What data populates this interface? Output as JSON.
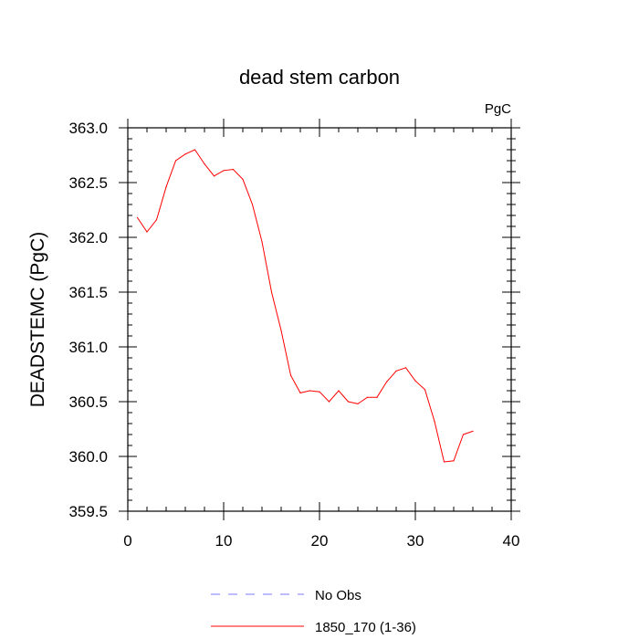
{
  "chart_data": {
    "type": "line",
    "title": "dead stem carbon",
    "units_label": "PgC",
    "xlabel": "",
    "ylabel": "DEADSTEMC  (PgC)",
    "xlim": [
      0,
      40
    ],
    "ylim": [
      359.5,
      363.0
    ],
    "x_ticks": [
      0,
      10,
      20,
      30,
      40
    ],
    "x_tick_labels": [
      "0",
      "10",
      "20",
      "30",
      "40"
    ],
    "y_ticks": [
      359.5,
      360.0,
      360.5,
      361.0,
      361.5,
      362.0,
      362.5,
      363.0
    ],
    "y_tick_labels": [
      "359.5",
      "360.0",
      "360.5",
      "361.0",
      "361.5",
      "362.0",
      "362.5",
      "363.0"
    ],
    "grid": false,
    "legend_position": "bottom",
    "series": [
      {
        "name": "No Obs",
        "color": "#7a7aff",
        "dash": "dashed",
        "x": [],
        "y": []
      },
      {
        "name": "1850_170 (1-36)",
        "color": "#ff0000",
        "dash": "solid",
        "x": [
          1,
          2,
          3,
          4,
          5,
          6,
          7,
          8,
          9,
          10,
          11,
          12,
          13,
          14,
          15,
          16,
          17,
          18,
          19,
          20,
          21,
          22,
          23,
          24,
          25,
          26,
          27,
          28,
          29,
          30,
          31,
          32,
          33,
          34,
          35,
          36
        ],
        "y": [
          362.18,
          362.05,
          362.16,
          362.46,
          362.7,
          362.76,
          362.8,
          362.67,
          362.56,
          362.61,
          362.62,
          362.53,
          362.3,
          361.96,
          361.5,
          361.15,
          360.74,
          360.58,
          360.6,
          360.59,
          360.5,
          360.6,
          360.5,
          360.48,
          360.54,
          360.54,
          360.68,
          360.78,
          360.81,
          360.69,
          360.61,
          360.32,
          359.95,
          359.96,
          360.2,
          360.23
        ]
      }
    ]
  }
}
